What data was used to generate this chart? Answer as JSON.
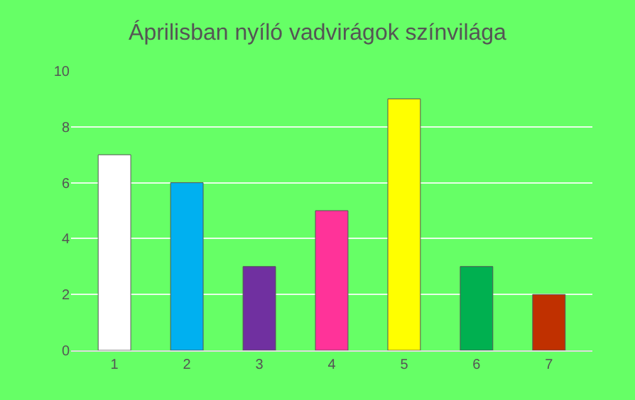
{
  "chart_data": {
    "type": "bar",
    "title": "Áprilisban nyíló vadvirágok színvilága",
    "categories": [
      "1",
      "2",
      "3",
      "4",
      "5",
      "6",
      "7"
    ],
    "values": [
      7,
      6,
      3,
      5,
      9,
      3,
      2
    ],
    "colors": [
      "#ffffff",
      "#00b0f0",
      "#7030a0",
      "#ff3399",
      "#ffff00",
      "#00b050",
      "#c03000"
    ],
    "ylim": [
      0,
      10
    ],
    "yticks": [
      0,
      2,
      4,
      6,
      8,
      10
    ],
    "grid": "y"
  }
}
